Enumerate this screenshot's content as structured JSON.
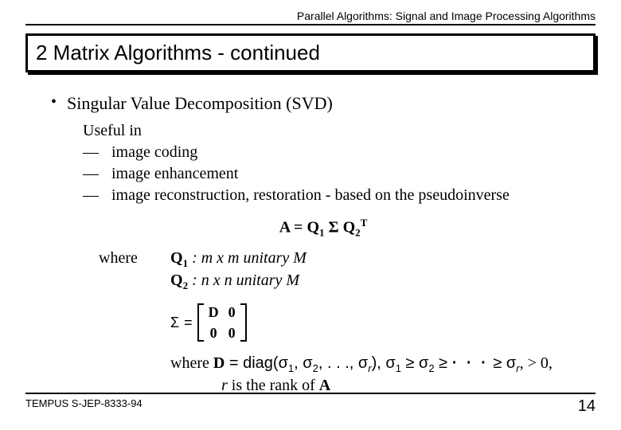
{
  "header": "Parallel Algorithms:  Signal and Image Processing Algorithms",
  "title": "2  Matrix Algorithms - continued",
  "bullet": "Singular Value Decomposition (SVD)",
  "useful_label": "Useful in",
  "useful_items": [
    "image coding",
    "image enhancement",
    "image reconstruction, restoration - based on the pseudoinverse"
  ],
  "formula": {
    "A": "A",
    "eq": " = ",
    "Q1": "Q",
    "s1": "1",
    "Sigma": " Σ ",
    "Q2": "Q",
    "s2": "2",
    "T": "T"
  },
  "where_label": "where",
  "q1": {
    "sym": "Q",
    "sub": "1",
    "rest": "  :  m x m unitary M"
  },
  "q2": {
    "sym": "Q",
    "sub": "2",
    "rest": "  :  n x n unitary M"
  },
  "sigma_sym": "Σ",
  "sigma_eq": "=",
  "matrix": {
    "a": "D",
    "b": "0",
    "c": "0",
    "d": "0"
  },
  "where2_pre": "where   ",
  "where2_d": "D",
  "where2_diag": " = diag(σ",
  "where2_s1": "1",
  "where2_c1": ", σ",
  "where2_s2": "2",
  "where2_c2": ", . . ., σ",
  "where2_sr": "r",
  "where2_c3": "),   σ",
  "where2_ss1": "1",
  "where2_ge1": " ≥ σ",
  "where2_ss2": "2",
  "where2_ge2": " ≥ ",
  "where2_dots": "· · ·",
  "where2_ge3": " ≥ σ",
  "where2_ssr": "r",
  "where2_end": ", > 0,",
  "rank_line_r": "r ",
  "rank_line_rest": " is the rank of ",
  "rank_line_A": "A",
  "footer_left": "TEMPUS S-JEP-8333-94",
  "footer_page": "14"
}
